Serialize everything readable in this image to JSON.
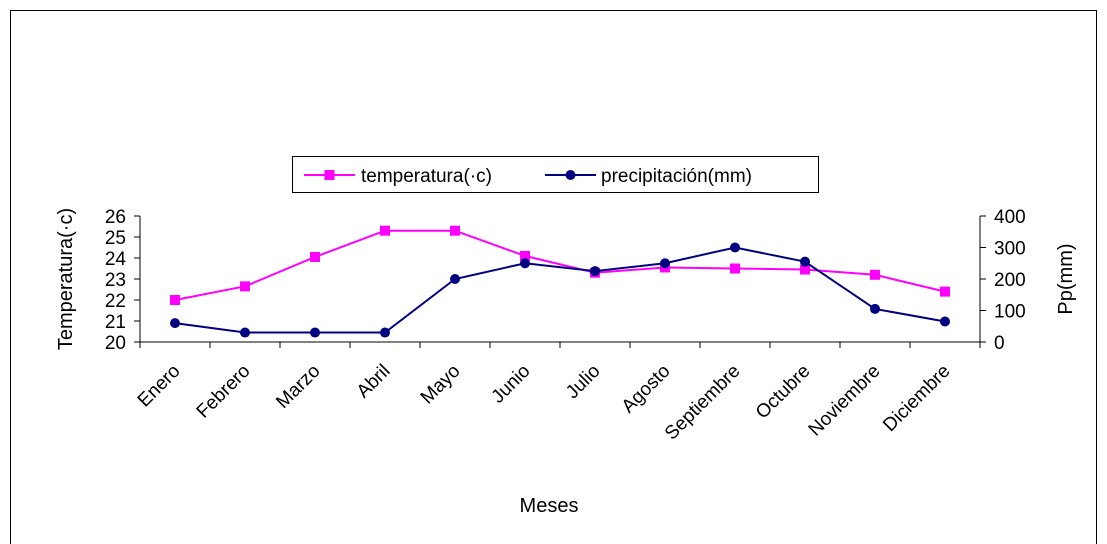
{
  "chart_data": {
    "type": "line",
    "categories": [
      "Enero",
      "Febrero",
      "Marzo",
      "Abril",
      "Mayo",
      "Junio",
      "Julio",
      "Agosto",
      "Septiembre",
      "Octubre",
      "Noviembre",
      "Diciembre"
    ],
    "series": [
      {
        "name": "temperatura(·c)",
        "axis": "left",
        "color": "#ff00ff",
        "marker": "square",
        "values": [
          22.0,
          22.65,
          24.05,
          25.3,
          25.3,
          24.1,
          23.3,
          23.55,
          23.5,
          23.45,
          23.2,
          22.4
        ]
      },
      {
        "name": "precipitación(mm)",
        "axis": "right",
        "color": "#000080",
        "marker": "circle",
        "values": [
          60,
          30,
          30,
          30,
          200,
          250,
          225,
          250,
          300,
          255,
          105,
          65
        ]
      }
    ],
    "xlabel": "Meses",
    "ylabel": "Temperatura(·c)",
    "y2label": "Pp(mm)",
    "ylim": [
      20,
      26
    ],
    "y2lim": [
      0,
      400
    ],
    "yticks": [
      "20",
      "21",
      "22",
      "23",
      "24",
      "25",
      "26"
    ],
    "y2ticks": [
      "0",
      "100",
      "200",
      "300",
      "400"
    ],
    "grid": false,
    "legend": "top-center"
  }
}
